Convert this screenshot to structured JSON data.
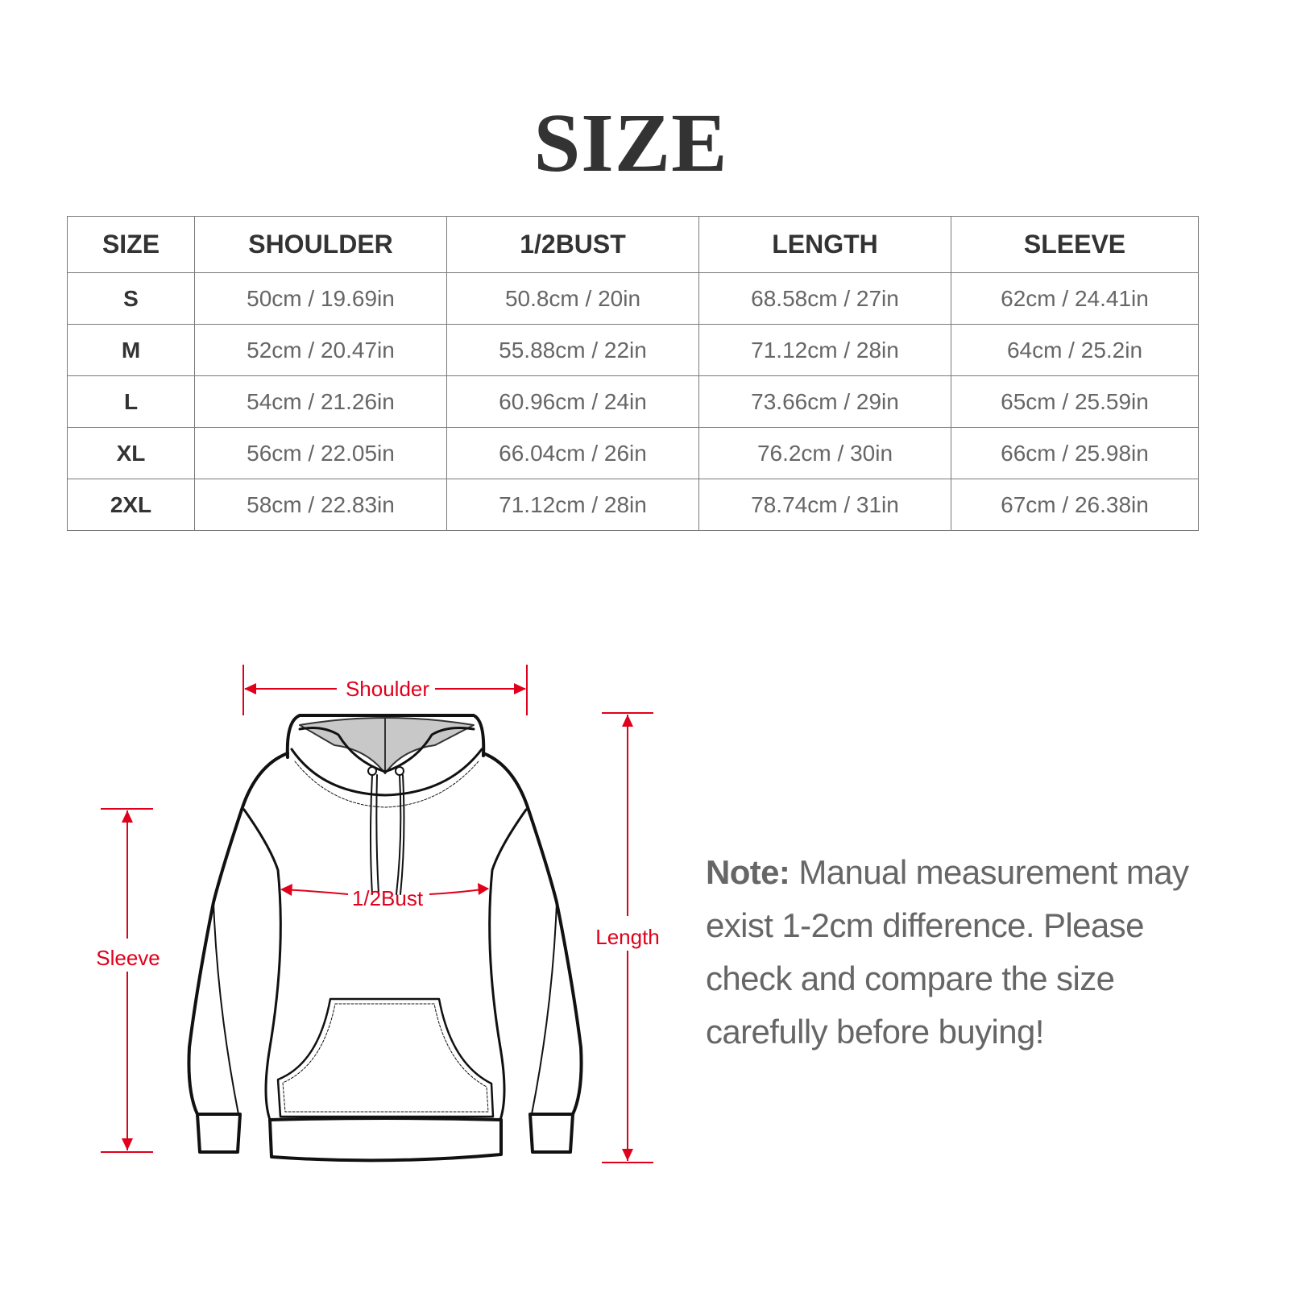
{
  "title": "SIZE",
  "table": {
    "headers": [
      "SIZE",
      "SHOULDER",
      "1/2BUST",
      "LENGTH",
      "SLEEVE"
    ],
    "rows": [
      [
        "S",
        "50cm / 19.69in",
        "50.8cm / 20in",
        "68.58cm / 27in",
        "62cm / 24.41in"
      ],
      [
        "M",
        "52cm / 20.47in",
        "55.88cm / 22in",
        "71.12cm / 28in",
        "64cm / 25.2in"
      ],
      [
        "L",
        "54cm / 21.26in",
        "60.96cm / 24in",
        "73.66cm / 29in",
        "65cm / 25.59in"
      ],
      [
        "XL",
        "56cm / 22.05in",
        "66.04cm / 26in",
        "76.2cm / 30in",
        "66cm / 25.98in"
      ],
      [
        "2XL",
        "58cm / 22.83in",
        "71.12cm / 28in",
        "78.74cm / 31in",
        "67cm / 26.38in"
      ]
    ]
  },
  "diagram": {
    "shoulder": "Shoulder",
    "bust": "1/2Bust",
    "length": "Length",
    "sleeve": "Sleeve",
    "accent_color": "#e0001b"
  },
  "note": {
    "label": "Note:",
    "lines": [
      " Manual measurement may",
      "exist 1-2cm difference. Please",
      "check and compare the size",
      "carefully before buying!"
    ]
  }
}
